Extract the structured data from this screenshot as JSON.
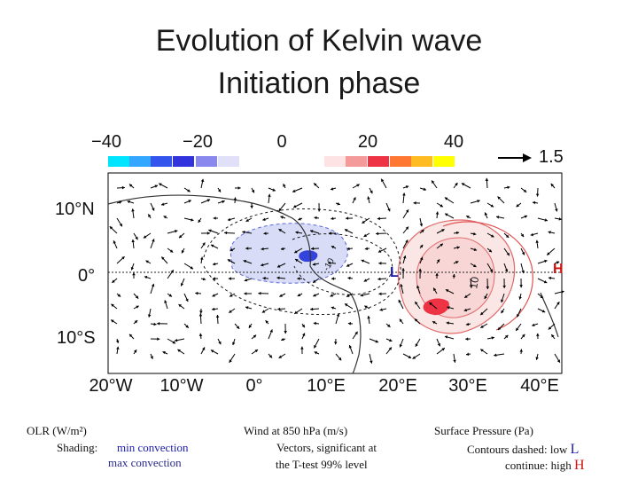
{
  "title": {
    "line1": "Evolution of Kelvin wave",
    "line2": "Initiation phase"
  },
  "colorbar": {
    "labels": [
      "−40",
      "−20",
      "0",
      "20",
      "40"
    ],
    "colors": [
      "#00e5ff",
      "#33a6ff",
      "#3355ee",
      "#3333dd",
      "#8888ee",
      "#e0e0f8",
      "#fde3e3",
      "#f59a9a",
      "#ee3344",
      "#ff7733",
      "#ffbb22",
      "#ffff00"
    ]
  },
  "vector_scale": {
    "label": "1.5"
  },
  "axes": {
    "y_ticks": [
      "10°N",
      "0°",
      "10°S"
    ],
    "x_ticks": [
      "20°W",
      "10°W",
      "0°",
      "10°E",
      "20°E",
      "30°E",
      "40°E"
    ]
  },
  "markers": {
    "low": "L",
    "high": "H",
    "contours": [
      "-10",
      "10"
    ]
  },
  "legend": {
    "olr": {
      "title": "OLR (W/m²)",
      "shading_label": "Shading:",
      "min": "min convection",
      "max": "max convection"
    },
    "wind": {
      "title": "Wind at 850 hPa (m/s)",
      "line1": "Vectors, significant at",
      "line2": "the T-test 99% level"
    },
    "pressure": {
      "title": "Surface Pressure (Pa)",
      "dashed": "Contours dashed: low",
      "dashed_mark": "L",
      "continue": "continue:  high",
      "continue_mark": "H"
    }
  }
}
